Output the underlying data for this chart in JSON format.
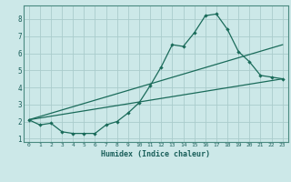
{
  "xlabel": "Humidex (Indice chaleur)",
  "ylabel": "",
  "background_color": "#cce8e8",
  "grid_color": "#aacccc",
  "line_color": "#1a6b5a",
  "xlim": [
    -0.5,
    23.5
  ],
  "ylim": [
    0.8,
    8.8
  ],
  "yticks": [
    1,
    2,
    3,
    4,
    5,
    6,
    7,
    8
  ],
  "xticks": [
    0,
    1,
    2,
    3,
    4,
    5,
    6,
    7,
    8,
    9,
    10,
    11,
    12,
    13,
    14,
    15,
    16,
    17,
    18,
    19,
    20,
    21,
    22,
    23
  ],
  "line1_x": [
    0,
    1,
    2,
    3,
    4,
    5,
    6,
    7,
    8,
    9,
    10,
    11,
    12,
    13,
    14,
    15,
    16,
    17,
    18,
    19,
    20,
    21,
    22,
    23
  ],
  "line1_y": [
    2.1,
    1.8,
    1.9,
    1.4,
    1.3,
    1.3,
    1.3,
    1.8,
    2.0,
    2.5,
    3.1,
    4.1,
    5.2,
    6.5,
    6.4,
    7.2,
    8.2,
    8.3,
    7.4,
    6.1,
    5.5,
    4.7,
    4.6,
    4.5
  ],
  "line2_x": [
    0,
    23
  ],
  "line2_y": [
    2.1,
    4.5
  ],
  "line3_x": [
    0,
    23
  ],
  "line3_y": [
    2.1,
    6.5
  ],
  "spine_color": "#4a8a80",
  "tick_color": "#1a5f5a",
  "label_color": "#1a5f5a"
}
